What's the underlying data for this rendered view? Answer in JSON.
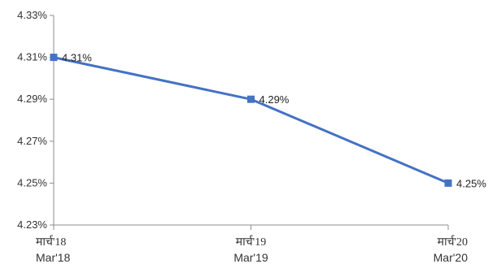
{
  "chart_data": {
    "type": "line",
    "categories": [
      "मार्च'18",
      "मार्च'19",
      "मार्च'20"
    ],
    "categories_secondary": [
      "Mar'18",
      "Mar'19",
      "Mar'20"
    ],
    "series": [
      {
        "values": [
          4.31,
          4.29,
          4.25
        ],
        "color": "#4472c4"
      }
    ],
    "data_labels": [
      "4.31%",
      "4.29%",
      "4.25%"
    ],
    "y_ticks": [
      4.23,
      4.25,
      4.27,
      4.29,
      4.31,
      4.33
    ],
    "y_tick_labels": [
      "4.23%",
      "4.25%",
      "4.27%",
      "4.29%",
      "4.31%",
      "4.33%"
    ],
    "ylim": [
      4.23,
      4.33
    ],
    "grid": false,
    "legend": "none",
    "marker": "square"
  }
}
